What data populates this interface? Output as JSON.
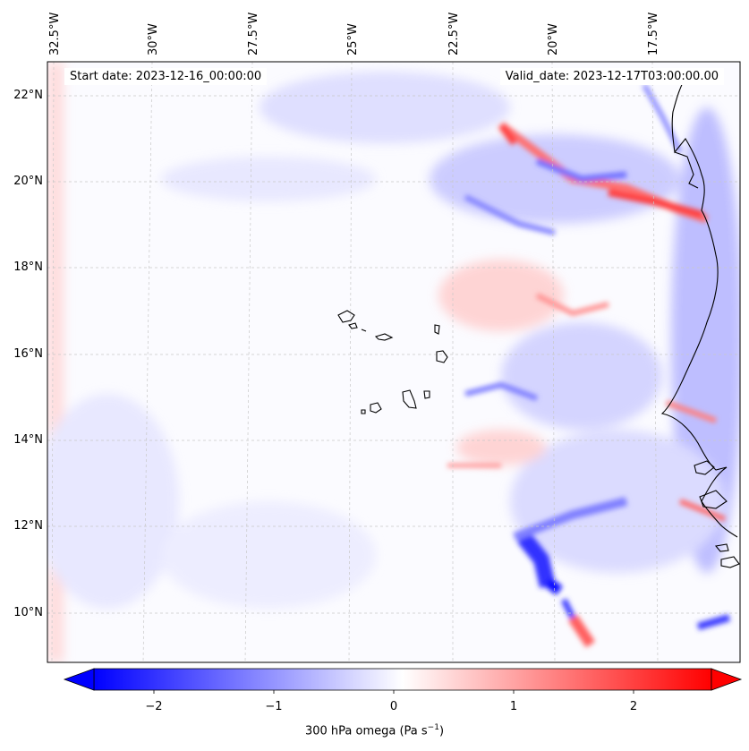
{
  "header": {
    "start_label": "Start date: 2023-12-16_00:00:00",
    "valid_label": "Valid_date: 2023-12-17T03:00:00.00"
  },
  "map": {
    "lon_labels": [
      "32.5°W",
      "30°W",
      "27.5°W",
      "25°W",
      "22.5°W",
      "20°W",
      "17.5°W"
    ],
    "lat_labels": [
      "22°N",
      "20°N",
      "18°N",
      "16°N",
      "14°N",
      "12°N",
      "10°N"
    ],
    "gridlines": true,
    "features": [
      "Cape Verde islands",
      "West African coastline"
    ]
  },
  "colorbar": {
    "label_prefix": "300 hPa omega (Pa s",
    "label_sup": "−1",
    "label_suffix": ")",
    "ticks": [
      "−2",
      "−1",
      "0",
      "1",
      "2"
    ],
    "range": [
      -2.7,
      2.7
    ],
    "colors": {
      "negative": "#0000ff",
      "zero": "#ffffff",
      "positive": "#ff0000"
    }
  }
}
